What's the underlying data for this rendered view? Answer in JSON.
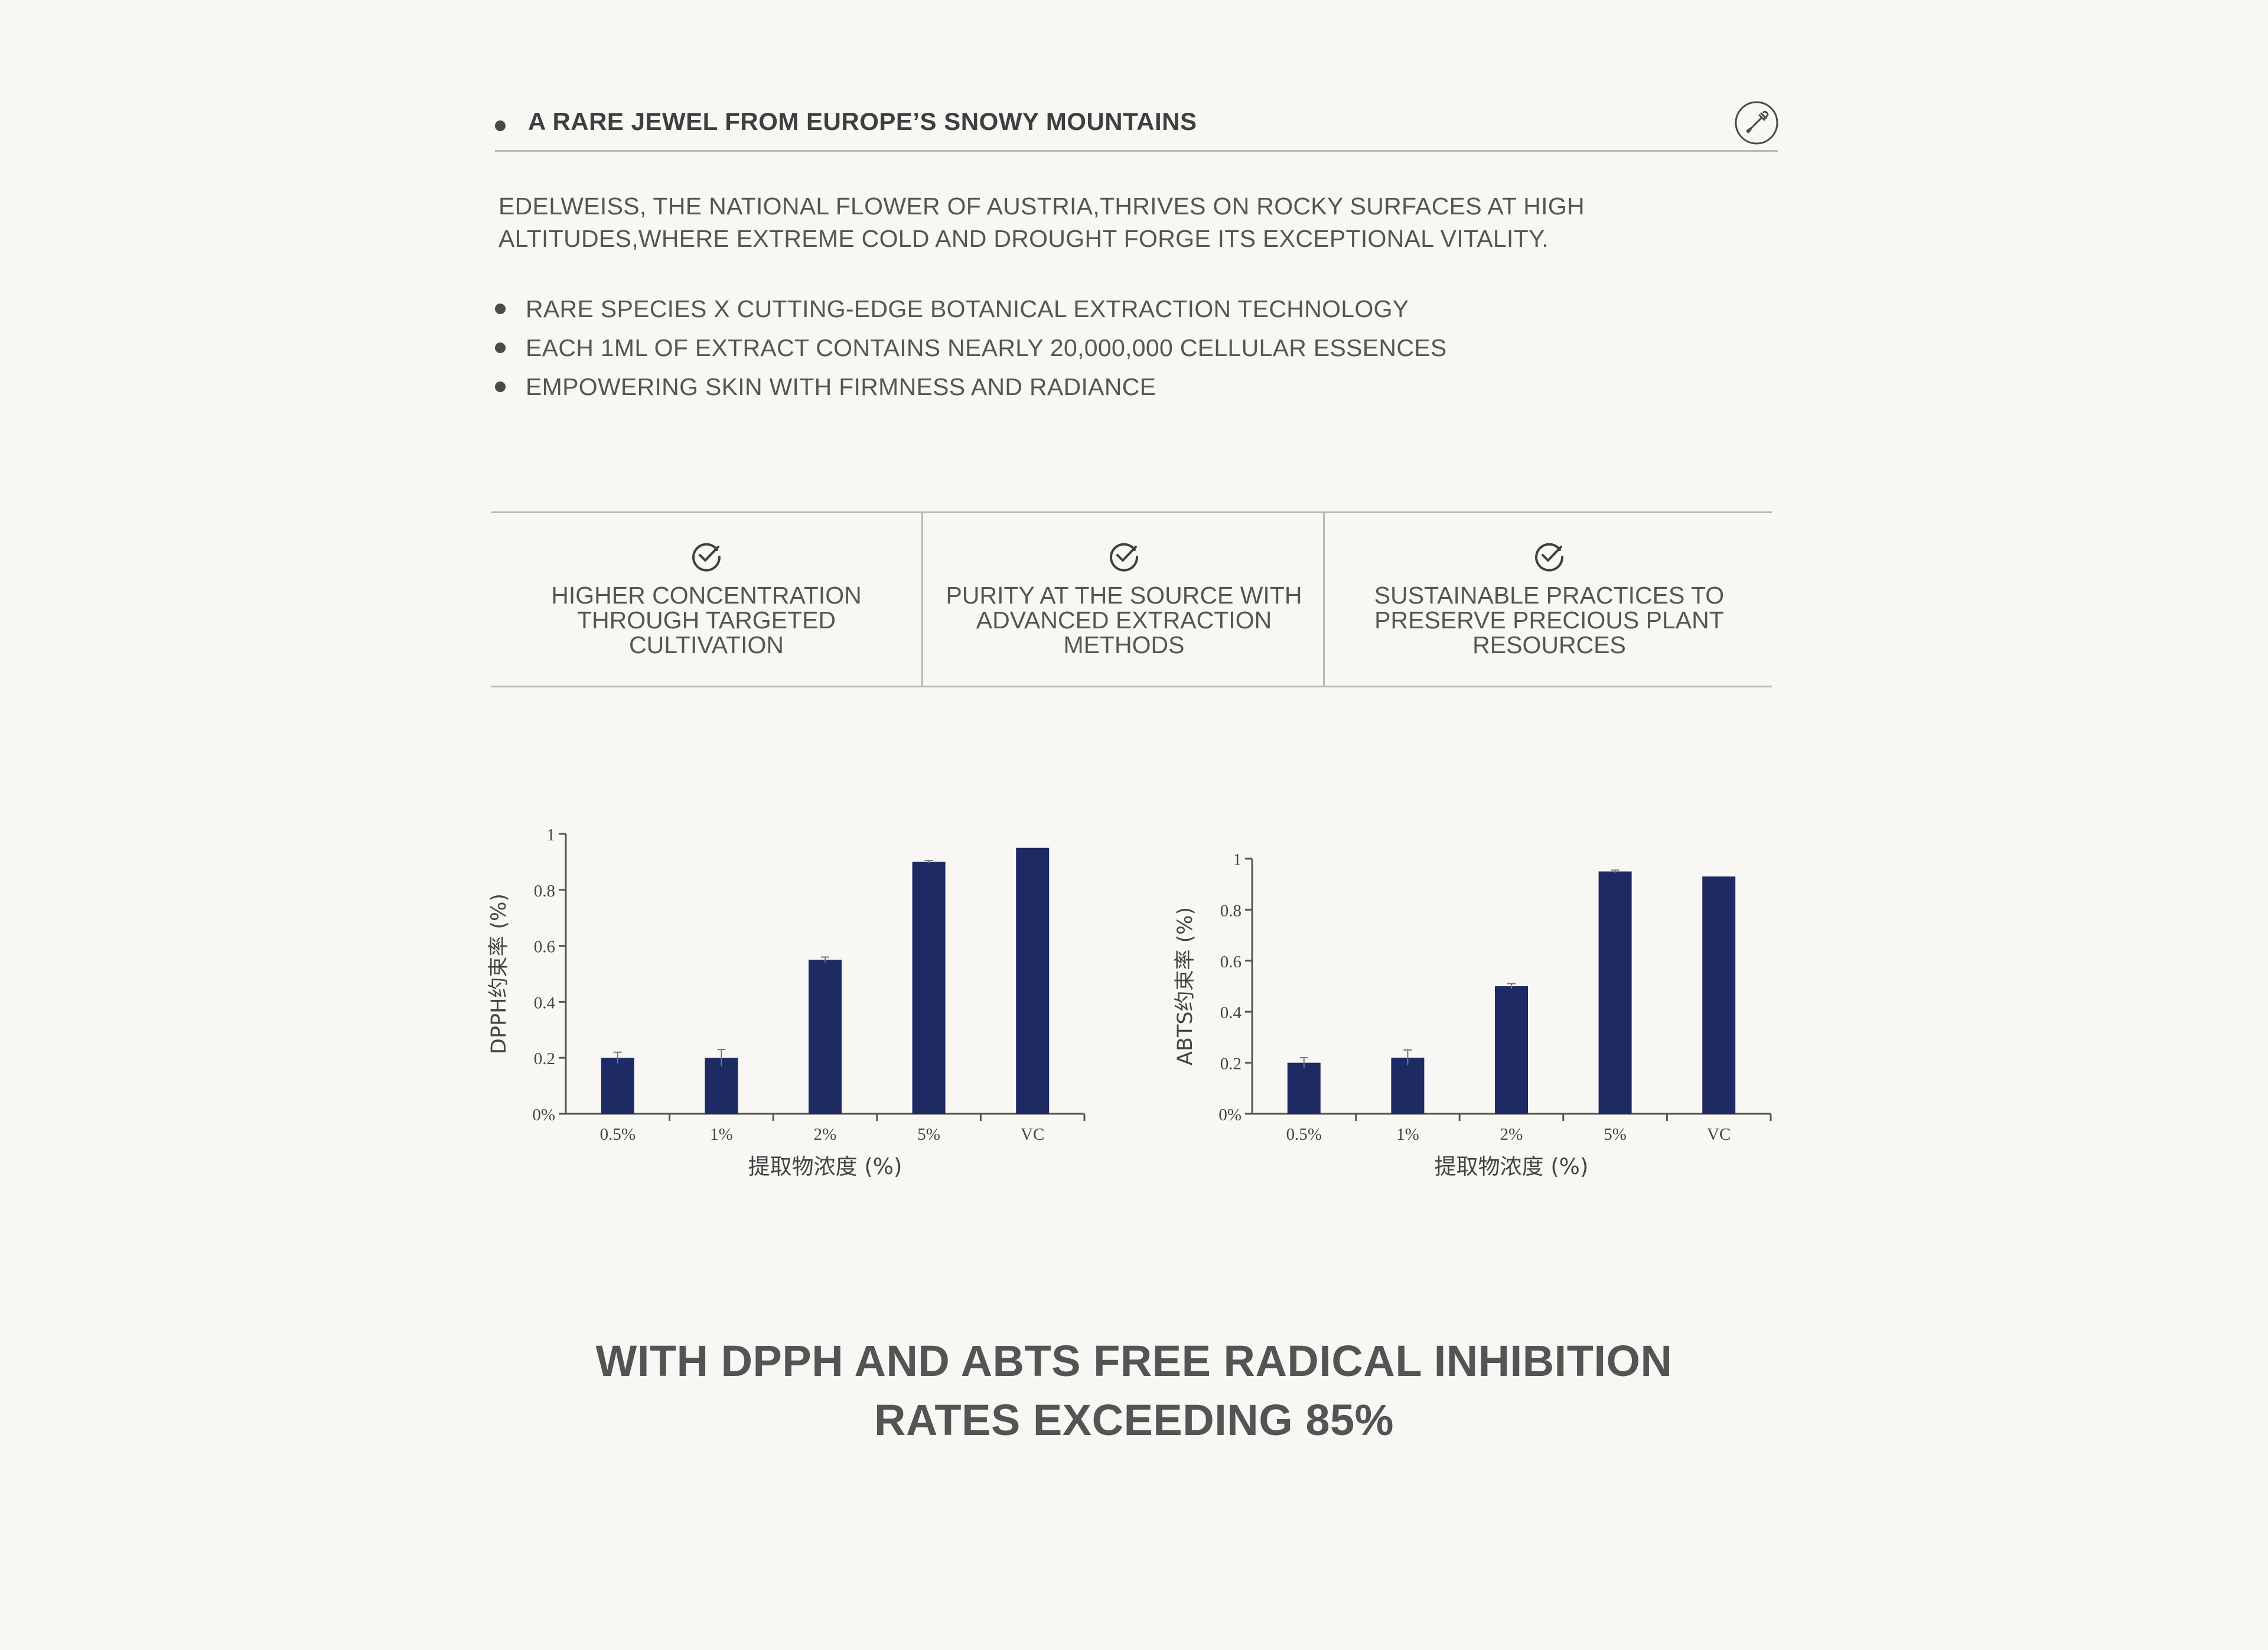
{
  "header": {
    "title": "A RARE JEWEL FROM EUROPE’S SNOWY MOUNTAINS",
    "icon": "dropper-icon"
  },
  "intro": "EDELWEISS, THE NATIONAL FLOWER OF AUSTRIA,THRIVES ON ROCKY SURFACES AT HIGH ALTITUDES,WHERE EXTREME COLD AND DROUGHT FORGE ITS EXCEPTIONAL VITALITY.",
  "bullets": [
    "RARE SPECIES X CUTTING-EDGE BOTANICAL EXTRACTION TECHNOLOGY",
    "EACH 1ML OF EXTRACT CONTAINS NEARLY 20,000,000 CELLULAR ESSENCES",
    "EMPOWERING SKIN WITH FIRMNESS AND RADIANCE"
  ],
  "features": [
    {
      "icon": "check-circle-icon",
      "text": "HIGHER CONCENTRATION THROUGH TARGETED CULTIVATION"
    },
    {
      "icon": "check-circle-icon",
      "text": "PURITY AT THE SOURCE WITH ADVANCED EXTRACTION METHODS"
    },
    {
      "icon": "check-circle-icon",
      "text": "SUSTAINABLE PRACTICES TO PRESERVE PRECIOUS PLANT RESOURCES"
    }
  ],
  "chart_data": [
    {
      "type": "bar",
      "categories": [
        "0.5%",
        "1%",
        "2%",
        "5%",
        "VC"
      ],
      "values": [
        0.2,
        0.2,
        0.55,
        0.9,
        0.95
      ],
      "errors": [
        0.02,
        0.03,
        0.01,
        0.005,
        0
      ],
      "ylabel": "DPPH约束率 (%)",
      "xlabel": "提取物浓度 (%)",
      "ylim": [
        0,
        1
      ],
      "yticks": [
        "0%",
        "0.2",
        "0.4",
        "0.6",
        "0.8",
        "1"
      ],
      "grid": false,
      "color": "#1e2a63"
    },
    {
      "type": "bar",
      "categories": [
        "0.5%",
        "1%",
        "2%",
        "5%",
        "VC"
      ],
      "values": [
        0.2,
        0.22,
        0.5,
        0.95,
        0.93
      ],
      "errors": [
        0.02,
        0.03,
        0.01,
        0.005,
        0
      ],
      "ylabel": "ABTS约束率 (%)",
      "xlabel": "提取物浓度 (%)",
      "ylim": [
        0,
        1
      ],
      "yticks": [
        "0%",
        "0.2",
        "0.4",
        "0.6",
        "0.8",
        "1"
      ],
      "grid": false,
      "color": "#1e2a63"
    }
  ],
  "footer": {
    "line1": "WITH DPPH AND ABTS FREE RADICAL INHIBITION",
    "line2": "RATES EXCEEDING 85%"
  },
  "colors": {
    "background": "#f8f7f3",
    "text": "#4a4a4a",
    "rule": "#b9b9b6",
    "bar": "#1e2a63"
  }
}
